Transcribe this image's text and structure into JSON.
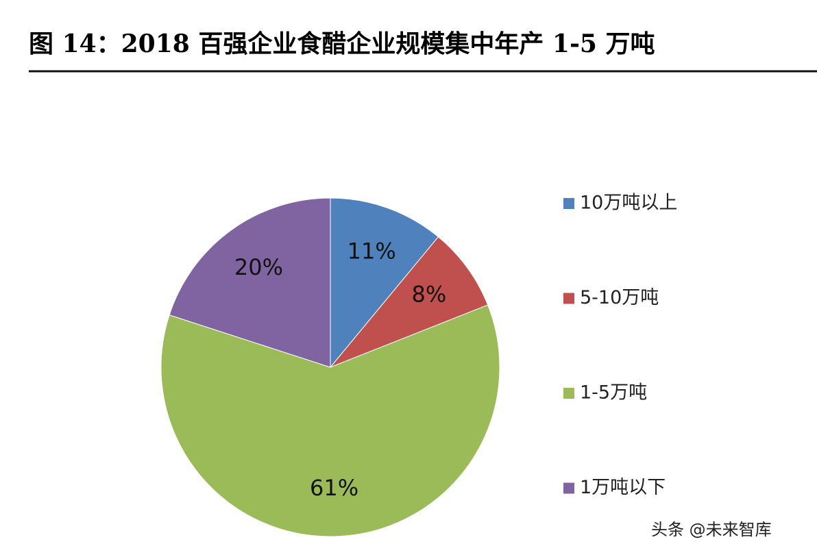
{
  "chart_data": {
    "type": "pie",
    "title": "图 14：2018 百强企业食醋企业规模集中年产 1-5 万吨",
    "categories": [
      "10万吨以上",
      "5-10万吨",
      "1-5万吨",
      "1万吨以下"
    ],
    "values": [
      11,
      8,
      61,
      20
    ],
    "value_labels": [
      "11%",
      "8%",
      "61%",
      "20%"
    ],
    "colors": [
      "#4f81bd",
      "#c0504d",
      "#9bbb59",
      "#8064a2"
    ],
    "legend": "right"
  },
  "watermark": "头条 @未来智库"
}
